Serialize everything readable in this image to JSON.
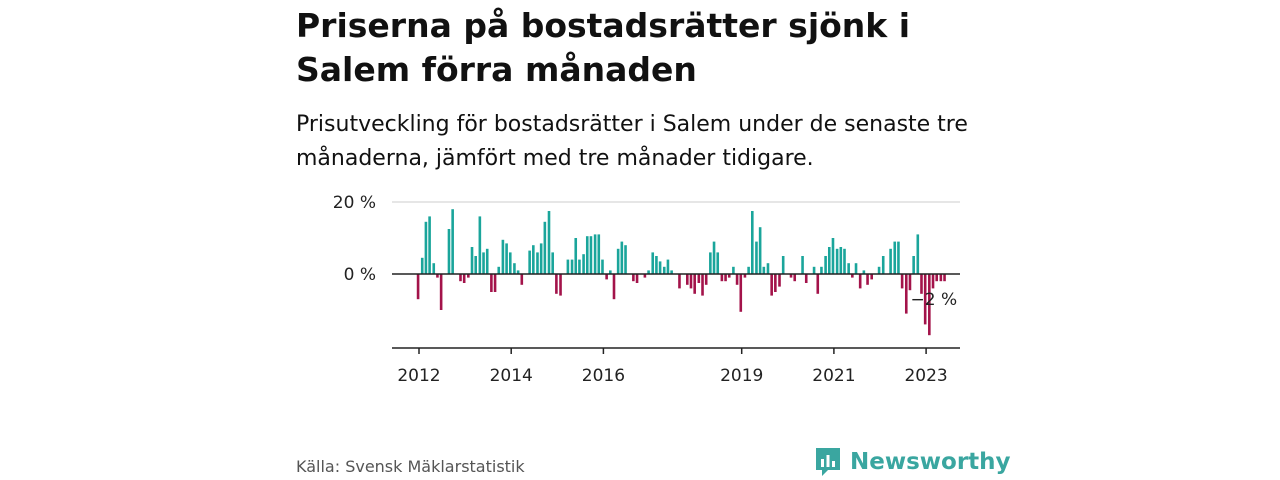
{
  "title": "Priserna på bostadsrätter sjönk i Salem förra månaden",
  "subtitle": "Prisutveckling för bostadsrätter i Salem under de senaste tre månaderna, jämfört med tre månader tidigare.",
  "source": "Källa: Svensk Mäklarstatistik",
  "brand": "Newsworthy",
  "colors": {
    "positive": "#1aa59b",
    "negative": "#a3134a",
    "brand": "#3aa6a0",
    "grid": "#dddddd",
    "axis": "#222222"
  },
  "chart_data": {
    "type": "bar",
    "title": "Priserna på bostadsrätter sjönk i Salem förra månaden",
    "xlabel": "",
    "ylabel": "",
    "ylim": [
      -20,
      20
    ],
    "y_ticks": [
      {
        "value": 20,
        "label": "20 %"
      },
      {
        "value": 0,
        "label": "0 %"
      }
    ],
    "x_ticks": [
      {
        "value": 2012.0,
        "label": "2012"
      },
      {
        "value": 2014.0,
        "label": "2014"
      },
      {
        "value": 2016.0,
        "label": "2016"
      },
      {
        "value": 2019.0,
        "label": "2019"
      },
      {
        "value": 2021.0,
        "label": "2021"
      },
      {
        "value": 2023.0,
        "label": "2023"
      }
    ],
    "last_value_label": "−2 %",
    "series": [
      {
        "name": "Prisutveckling (%)",
        "points": [
          {
            "x": 2011.98,
            "y": -7
          },
          {
            "x": 2012.07,
            "y": 4.5
          },
          {
            "x": 2012.15,
            "y": 14.5
          },
          {
            "x": 2012.23,
            "y": 16
          },
          {
            "x": 2012.32,
            "y": 3
          },
          {
            "x": 2012.4,
            "y": -1
          },
          {
            "x": 2012.48,
            "y": -10
          },
          {
            "x": 2012.65,
            "y": 12.5
          },
          {
            "x": 2012.73,
            "y": 18
          },
          {
            "x": 2012.9,
            "y": -2
          },
          {
            "x": 2012.98,
            "y": -2.5
          },
          {
            "x": 2013.07,
            "y": -1
          },
          {
            "x": 2013.15,
            "y": 7.5
          },
          {
            "x": 2013.23,
            "y": 5
          },
          {
            "x": 2013.32,
            "y": 16
          },
          {
            "x": 2013.4,
            "y": 6
          },
          {
            "x": 2013.48,
            "y": 7
          },
          {
            "x": 2013.57,
            "y": -5
          },
          {
            "x": 2013.65,
            "y": -5
          },
          {
            "x": 2013.73,
            "y": 2
          },
          {
            "x": 2013.82,
            "y": 9.5
          },
          {
            "x": 2013.9,
            "y": 8.5
          },
          {
            "x": 2013.98,
            "y": 6
          },
          {
            "x": 2014.07,
            "y": 3
          },
          {
            "x": 2014.15,
            "y": 1
          },
          {
            "x": 2014.23,
            "y": -3
          },
          {
            "x": 2014.4,
            "y": 6.5
          },
          {
            "x": 2014.48,
            "y": 8
          },
          {
            "x": 2014.57,
            "y": 6
          },
          {
            "x": 2014.65,
            "y": 8.5
          },
          {
            "x": 2014.73,
            "y": 14.5
          },
          {
            "x": 2014.82,
            "y": 17.5
          },
          {
            "x": 2014.9,
            "y": 6
          },
          {
            "x": 2014.98,
            "y": -5.5
          },
          {
            "x": 2015.07,
            "y": -6
          },
          {
            "x": 2015.23,
            "y": 4
          },
          {
            "x": 2015.32,
            "y": 4
          },
          {
            "x": 2015.4,
            "y": 10
          },
          {
            "x": 2015.48,
            "y": 4
          },
          {
            "x": 2015.57,
            "y": 5.5
          },
          {
            "x": 2015.65,
            "y": 10.5
          },
          {
            "x": 2015.73,
            "y": 10.5
          },
          {
            "x": 2015.82,
            "y": 11
          },
          {
            "x": 2015.9,
            "y": 11
          },
          {
            "x": 2015.98,
            "y": 4
          },
          {
            "x": 2016.07,
            "y": -1.5
          },
          {
            "x": 2016.15,
            "y": 1
          },
          {
            "x": 2016.23,
            "y": -7
          },
          {
            "x": 2016.32,
            "y": 7
          },
          {
            "x": 2016.4,
            "y": 9
          },
          {
            "x": 2016.48,
            "y": 8
          },
          {
            "x": 2016.65,
            "y": -2
          },
          {
            "x": 2016.73,
            "y": -2.5
          },
          {
            "x": 2016.9,
            "y": -1
          },
          {
            "x": 2016.98,
            "y": 1
          },
          {
            "x": 2017.07,
            "y": 6
          },
          {
            "x": 2017.15,
            "y": 5
          },
          {
            "x": 2017.23,
            "y": 3.5
          },
          {
            "x": 2017.32,
            "y": 2
          },
          {
            "x": 2017.4,
            "y": 4
          },
          {
            "x": 2017.48,
            "y": 1
          },
          {
            "x": 2017.65,
            "y": -4
          },
          {
            "x": 2017.82,
            "y": -3
          },
          {
            "x": 2017.9,
            "y": -4
          },
          {
            "x": 2017.98,
            "y": -5.5
          },
          {
            "x": 2018.07,
            "y": -2.5
          },
          {
            "x": 2018.15,
            "y": -6
          },
          {
            "x": 2018.23,
            "y": -3
          },
          {
            "x": 2018.32,
            "y": 6
          },
          {
            "x": 2018.4,
            "y": 9
          },
          {
            "x": 2018.48,
            "y": 6
          },
          {
            "x": 2018.57,
            "y": -2
          },
          {
            "x": 2018.65,
            "y": -2
          },
          {
            "x": 2018.73,
            "y": -1
          },
          {
            "x": 2018.82,
            "y": 2
          },
          {
            "x": 2018.9,
            "y": -3
          },
          {
            "x": 2018.98,
            "y": -10.5
          },
          {
            "x": 2019.07,
            "y": -1
          },
          {
            "x": 2019.15,
            "y": 2
          },
          {
            "x": 2019.23,
            "y": 17.5
          },
          {
            "x": 2019.32,
            "y": 9
          },
          {
            "x": 2019.4,
            "y": 13
          },
          {
            "x": 2019.48,
            "y": 2
          },
          {
            "x": 2019.57,
            "y": 3
          },
          {
            "x": 2019.65,
            "y": -6
          },
          {
            "x": 2019.73,
            "y": -5
          },
          {
            "x": 2019.82,
            "y": -3.5
          },
          {
            "x": 2019.9,
            "y": 5
          },
          {
            "x": 2020.07,
            "y": -1
          },
          {
            "x": 2020.15,
            "y": -2
          },
          {
            "x": 2020.32,
            "y": 5
          },
          {
            "x": 2020.4,
            "y": -2.5
          },
          {
            "x": 2020.57,
            "y": 2
          },
          {
            "x": 2020.65,
            "y": -5.5
          },
          {
            "x": 2020.73,
            "y": 2
          },
          {
            "x": 2020.82,
            "y": 5
          },
          {
            "x": 2020.9,
            "y": 7.5
          },
          {
            "x": 2020.98,
            "y": 10
          },
          {
            "x": 2021.07,
            "y": 7
          },
          {
            "x": 2021.15,
            "y": 7.5
          },
          {
            "x": 2021.23,
            "y": 7
          },
          {
            "x": 2021.32,
            "y": 3
          },
          {
            "x": 2021.4,
            "y": -1
          },
          {
            "x": 2021.48,
            "y": 3
          },
          {
            "x": 2021.57,
            "y": -4
          },
          {
            "x": 2021.65,
            "y": 1
          },
          {
            "x": 2021.73,
            "y": -3
          },
          {
            "x": 2021.82,
            "y": -1.5
          },
          {
            "x": 2021.98,
            "y": 2
          },
          {
            "x": 2022.07,
            "y": 5
          },
          {
            "x": 2022.23,
            "y": 7
          },
          {
            "x": 2022.32,
            "y": 9
          },
          {
            "x": 2022.4,
            "y": 9
          },
          {
            "x": 2022.48,
            "y": -4
          },
          {
            "x": 2022.57,
            "y": -11
          },
          {
            "x": 2022.65,
            "y": -4.5
          },
          {
            "x": 2022.73,
            "y": 5
          },
          {
            "x": 2022.82,
            "y": 11
          },
          {
            "x": 2022.9,
            "y": -5.5
          },
          {
            "x": 2022.98,
            "y": -14
          },
          {
            "x": 2023.07,
            "y": -17
          },
          {
            "x": 2023.15,
            "y": -4
          },
          {
            "x": 2023.23,
            "y": -2
          },
          {
            "x": 2023.32,
            "y": -2
          },
          {
            "x": 2023.4,
            "y": -2
          }
        ]
      }
    ]
  }
}
